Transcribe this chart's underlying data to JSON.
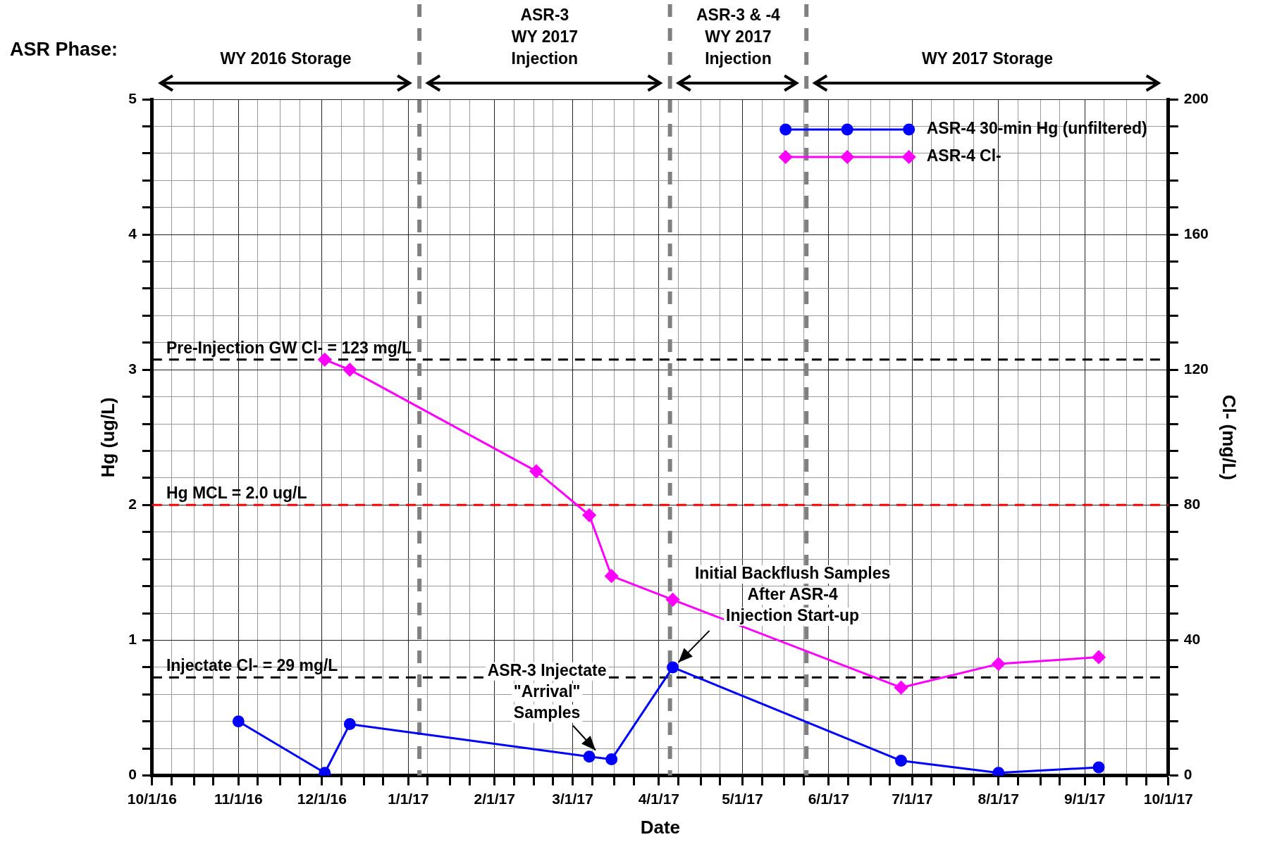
{
  "chart_data": {
    "type": "line",
    "xlabel": "Date",
    "ylabel": "Hg (ug/L)",
    "y2label": "Cl- (mg/L)",
    "xlim": [
      "2016-10-01",
      "2017-10-01"
    ],
    "xticks": [
      {
        "value": "2016-10-01",
        "label": "10/1/16"
      },
      {
        "value": "2016-10-08",
        "label": null
      },
      {
        "value": "2016-10-16",
        "label": null
      },
      {
        "value": "2016-10-23",
        "label": null
      },
      {
        "value": "2016-11-01",
        "label": "11/1/16"
      },
      {
        "value": "2016-11-08",
        "label": null
      },
      {
        "value": "2016-11-16",
        "label": null
      },
      {
        "value": "2016-11-23",
        "label": null
      },
      {
        "value": "2016-12-01",
        "label": "12/1/16"
      },
      {
        "value": "2016-12-08",
        "label": null
      },
      {
        "value": "2016-12-16",
        "label": null
      },
      {
        "value": "2016-12-23",
        "label": null
      },
      {
        "value": "2017-01-01",
        "label": "1/1/17"
      },
      {
        "value": "2017-01-08",
        "label": null
      },
      {
        "value": "2017-01-16",
        "label": null
      },
      {
        "value": "2017-01-23",
        "label": null
      },
      {
        "value": "2017-02-01",
        "label": "2/1/17"
      },
      {
        "value": "2017-02-08",
        "label": null
      },
      {
        "value": "2017-02-15",
        "label": null
      },
      {
        "value": "2017-02-22",
        "label": null
      },
      {
        "value": "2017-03-01",
        "label": "3/1/17"
      },
      {
        "value": "2017-03-08",
        "label": null
      },
      {
        "value": "2017-03-16",
        "label": null
      },
      {
        "value": "2017-03-23",
        "label": null
      },
      {
        "value": "2017-04-01",
        "label": "4/1/17"
      },
      {
        "value": "2017-04-08",
        "label": null
      },
      {
        "value": "2017-04-16",
        "label": null
      },
      {
        "value": "2017-04-23",
        "label": null
      },
      {
        "value": "2017-05-01",
        "label": "5/1/17"
      },
      {
        "value": "2017-05-08",
        "label": null
      },
      {
        "value": "2017-05-16",
        "label": null
      },
      {
        "value": "2017-05-23",
        "label": null
      },
      {
        "value": "2017-06-01",
        "label": "6/1/17"
      },
      {
        "value": "2017-06-08",
        "label": null
      },
      {
        "value": "2017-06-16",
        "label": null
      },
      {
        "value": "2017-06-23",
        "label": null
      },
      {
        "value": "2017-07-01",
        "label": "7/1/17"
      },
      {
        "value": "2017-07-08",
        "label": null
      },
      {
        "value": "2017-07-16",
        "label": null
      },
      {
        "value": "2017-07-23",
        "label": null
      },
      {
        "value": "2017-08-01",
        "label": "8/1/17"
      },
      {
        "value": "2017-08-08",
        "label": null
      },
      {
        "value": "2017-08-16",
        "label": null
      },
      {
        "value": "2017-08-23",
        "label": null
      },
      {
        "value": "2017-09-01",
        "label": "9/1/17"
      },
      {
        "value": "2017-09-08",
        "label": null
      },
      {
        "value": "2017-09-16",
        "label": null
      },
      {
        "value": "2017-09-23",
        "label": null
      },
      {
        "value": "2017-10-01",
        "label": "10/1/17"
      }
    ],
    "ylim": [
      0,
      5
    ],
    "yticks": [
      0,
      {
        "value": 0.2,
        "label": null
      },
      {
        "value": 0.4,
        "label": null
      },
      {
        "value": 0.6,
        "label": null
      },
      {
        "value": 0.8,
        "label": null
      },
      1,
      {
        "value": 1.2,
        "label": null
      },
      {
        "value": 1.4,
        "label": null
      },
      {
        "value": 1.6,
        "label": null
      },
      {
        "value": 1.8,
        "label": null
      },
      2,
      {
        "value": 2.2,
        "label": null
      },
      {
        "value": 2.4,
        "label": null
      },
      {
        "value": 2.6,
        "label": null
      },
      {
        "value": 2.8,
        "label": null
      },
      3,
      {
        "value": 3.2,
        "label": null
      },
      {
        "value": 3.4,
        "label": null
      },
      {
        "value": 3.6,
        "label": null
      },
      {
        "value": 3.8,
        "label": null
      },
      4,
      {
        "value": 4.2,
        "label": null
      },
      {
        "value": 4.4,
        "label": null
      },
      {
        "value": 4.6,
        "label": null
      },
      {
        "value": 4.8,
        "label": null
      },
      5
    ],
    "y2lim": [
      0,
      200
    ],
    "y2ticks": [
      0,
      {
        "value": 8,
        "label": null
      },
      {
        "value": 16,
        "label": null
      },
      {
        "value": 24,
        "label": null
      },
      {
        "value": 32,
        "label": null
      },
      40,
      {
        "value": 48,
        "label": null
      },
      {
        "value": 56,
        "label": null
      },
      {
        "value": 64,
        "label": null
      },
      {
        "value": 72,
        "label": null
      },
      80,
      {
        "value": 88,
        "label": null
      },
      {
        "value": 96,
        "label": null
      },
      {
        "value": 104,
        "label": null
      },
      {
        "value": 112,
        "label": null
      },
      120,
      {
        "value": 128,
        "label": null
      },
      {
        "value": 136,
        "label": null
      },
      {
        "value": 144,
        "label": null
      },
      {
        "value": 152,
        "label": null
      },
      160,
      {
        "value": 168,
        "label": null
      },
      {
        "value": 176,
        "label": null
      },
      {
        "value": 184,
        "label": null
      },
      {
        "value": 192,
        "label": null
      },
      200
    ],
    "series": [
      {
        "name": "ASR-4 30-min Hg (unfiltered)",
        "color": "#0000ff",
        "marker": "circle",
        "x": [
          "2016-11-01",
          "2016-12-02",
          "2016-12-11",
          "2017-03-07",
          "2017-03-15",
          "2017-04-06",
          "2017-06-27",
          "2017-08-01",
          "2017-09-06"
        ],
        "values": [
          0.4,
          0.02,
          0.38,
          0.14,
          0.12,
          0.8,
          0.11,
          0.02,
          0.06
        ]
      },
      {
        "name": "ASR-4 Cl-",
        "color": "#ff00ff",
        "marker": "diamond",
        "axis": "y2",
        "x": [
          "2016-12-02",
          "2016-12-11",
          "2017-02-16",
          "2017-03-07",
          "2017-03-15",
          "2017-04-06",
          "2017-06-27",
          "2017-08-01",
          "2017-09-06"
        ],
        "values": [
          123,
          120,
          90,
          77,
          59,
          52,
          26,
          33,
          35
        ]
      }
    ],
    "ref_lines": [
      {
        "axis": "y2",
        "value": 123,
        "label": "Pre-Injection GW Cl- = 123 mg/L",
        "color": "#000000",
        "line_style": "dashed"
      },
      {
        "axis": "y",
        "value": 2.0,
        "label": "Hg MCL = 2.0 ug/L",
        "color": "#ff0000",
        "line_style": "dashed"
      },
      {
        "axis": "y2",
        "value": 29,
        "label": "Injectate Cl- = 29 mg/L",
        "color": "#000000",
        "line_style": "dashed"
      },
      {
        "axis": "x",
        "value": "2017-01-05",
        "color": "#808080",
        "line_style": "dashed"
      },
      {
        "axis": "x",
        "value": "2017-04-05",
        "color": "#808080",
        "line_style": "dashed"
      },
      {
        "axis": "x",
        "value": "2017-05-24",
        "color": "#808080",
        "line_style": "dashed"
      }
    ],
    "annotations": [
      "ASR Phase:",
      "WY 2016 Storage",
      "ASR-3\nWY 2017\nInjection",
      "ASR-3 & -4\nWY 2017\nInjection",
      "WY 2017 Storage",
      {
        "text": "ASR-3 Injectate\n\"Arrival\"\nSamples",
        "x": "2017-03-07",
        "y": 0.14
      },
      {
        "text": "Initial Backflush Samples\nAfter ASR-4\nInjection Start-up",
        "x": "2017-04-06",
        "y": 0.8
      }
    ],
    "grid": true,
    "legend": "top right"
  }
}
